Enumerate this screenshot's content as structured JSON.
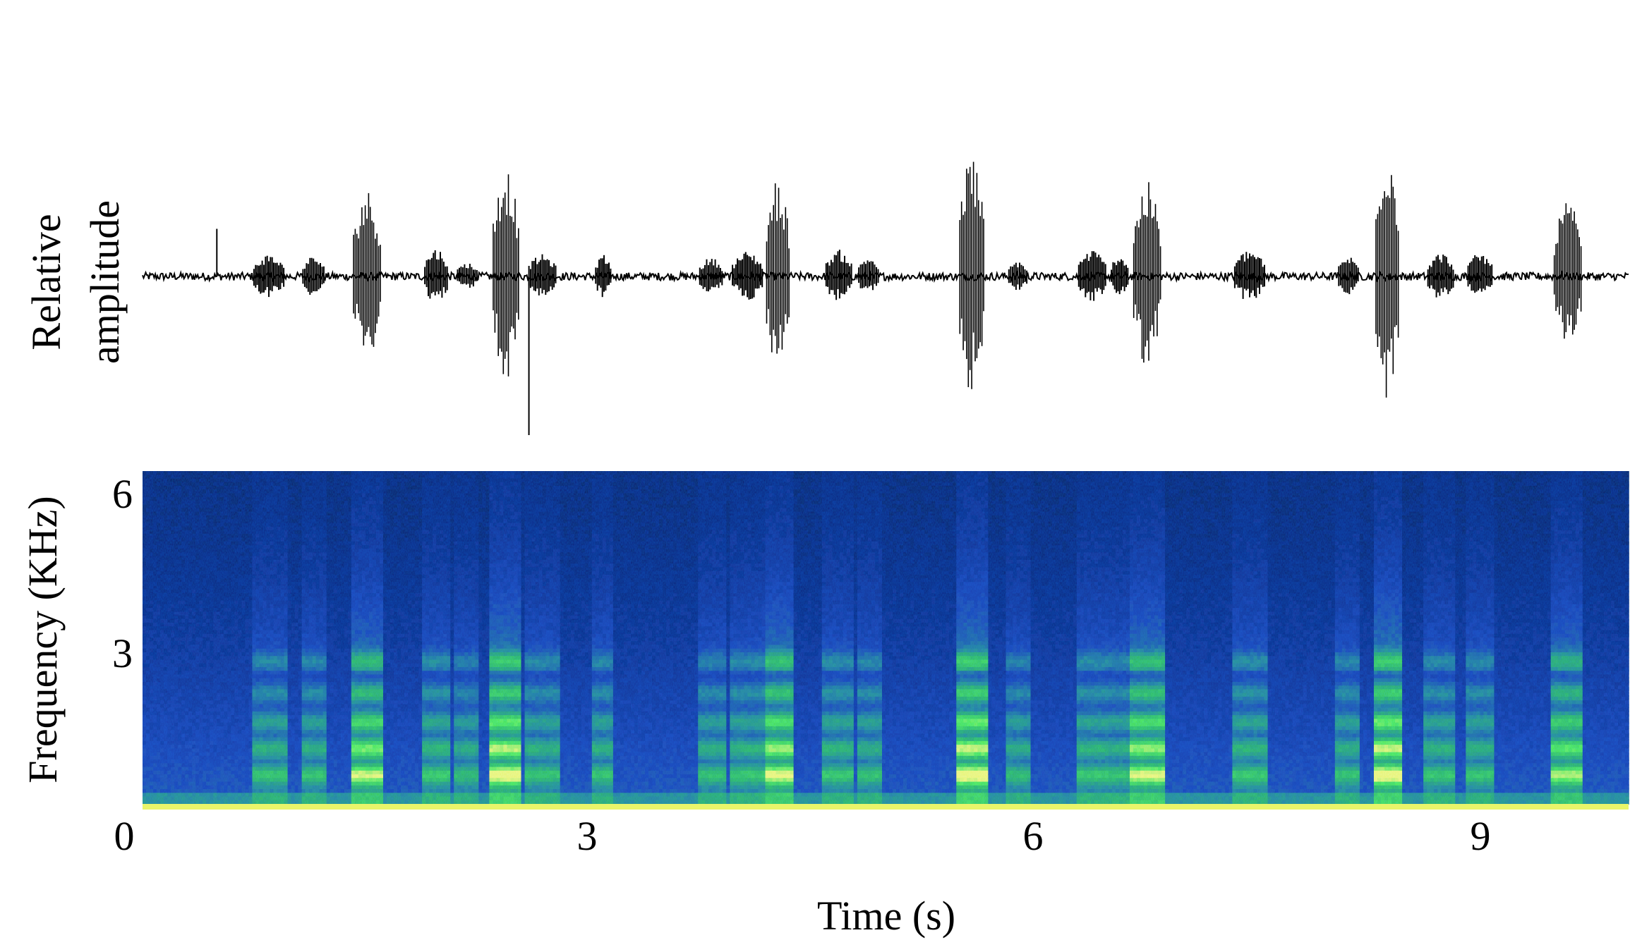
{
  "chart_data": [
    {
      "type": "line",
      "panel": "waveform",
      "title": "",
      "ylabel_lines": [
        "Relative",
        "amplitude"
      ],
      "xlim": [
        0,
        10
      ],
      "ylim": [
        -1,
        1
      ],
      "color": "#000000",
      "baseline_noise": 0.025,
      "bursts": [
        {
          "t_start": 0.75,
          "t_end": 0.95,
          "amplitude": 0.14
        },
        {
          "t_start": 1.08,
          "t_end": 1.22,
          "amplitude": 0.13
        },
        {
          "t_start": 1.42,
          "t_end": 1.6,
          "amplitude": 0.55
        },
        {
          "t_start": 1.9,
          "t_end": 2.05,
          "amplitude": 0.18
        },
        {
          "t_start": 2.12,
          "t_end": 2.25,
          "amplitude": 0.09
        },
        {
          "t_start": 2.36,
          "t_end": 2.53,
          "amplitude": 0.7
        },
        {
          "t_start": 2.6,
          "t_end": 2.78,
          "amplitude": 0.14
        },
        {
          "t_start": 3.05,
          "t_end": 3.15,
          "amplitude": 0.14
        },
        {
          "t_start": 3.75,
          "t_end": 3.9,
          "amplitude": 0.12
        },
        {
          "t_start": 3.97,
          "t_end": 4.17,
          "amplitude": 0.16
        },
        {
          "t_start": 4.2,
          "t_end": 4.35,
          "amplitude": 0.62
        },
        {
          "t_start": 4.6,
          "t_end": 4.77,
          "amplitude": 0.17
        },
        {
          "t_start": 4.82,
          "t_end": 4.95,
          "amplitude": 0.13
        },
        {
          "t_start": 5.5,
          "t_end": 5.66,
          "amplitude": 0.78
        },
        {
          "t_start": 5.83,
          "t_end": 5.95,
          "amplitude": 0.1
        },
        {
          "t_start": 6.3,
          "t_end": 6.48,
          "amplitude": 0.17
        },
        {
          "t_start": 6.52,
          "t_end": 6.63,
          "amplitude": 0.14
        },
        {
          "t_start": 6.67,
          "t_end": 6.85,
          "amplitude": 0.6
        },
        {
          "t_start": 7.35,
          "t_end": 7.55,
          "amplitude": 0.17
        },
        {
          "t_start": 8.05,
          "t_end": 8.18,
          "amplitude": 0.13
        },
        {
          "t_start": 8.3,
          "t_end": 8.45,
          "amplitude": 0.85
        },
        {
          "t_start": 8.65,
          "t_end": 8.82,
          "amplitude": 0.15
        },
        {
          "t_start": 8.92,
          "t_end": 9.08,
          "amplitude": 0.15
        },
        {
          "t_start": 9.5,
          "t_end": 9.68,
          "amplitude": 0.48
        }
      ],
      "spikes": [
        {
          "t": 0.5,
          "amplitude": 0.3
        },
        {
          "t": 2.6,
          "amplitude": -1.0
        }
      ]
    },
    {
      "type": "heatmap",
      "panel": "spectrogram",
      "xlabel": "Time (s)",
      "ylabel": "Frequency (KHz)",
      "xlim": [
        0,
        10
      ],
      "ylim": [
        0,
        6.3
      ],
      "xticks": [
        "0",
        "3",
        "6",
        "9"
      ],
      "yticks": [
        "3",
        "6"
      ],
      "colormap": [
        "#000010",
        "#0a1a78",
        "#1f42b8",
        "#2a8c96",
        "#31b852",
        "#52e83a",
        "#e9f56a"
      ],
      "harmonic_bands_khz": [
        0.55,
        1.05,
        1.55,
        2.1,
        2.7
      ]
    }
  ]
}
